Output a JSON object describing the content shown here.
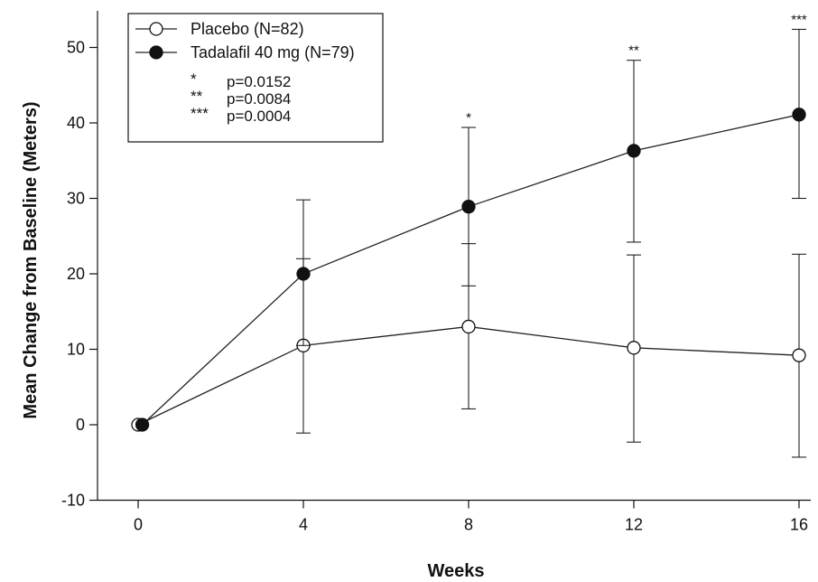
{
  "chart_data": {
    "type": "line",
    "xlabel": "Weeks",
    "ylabel": "Mean Change from Baseline (Meters)",
    "xlim": [
      -1,
      17
    ],
    "ylim": [
      -10,
      55
    ],
    "x_ticks": [
      0,
      4,
      8,
      12,
      16
    ],
    "y_ticks": [
      -10,
      0,
      10,
      20,
      30,
      40,
      50
    ],
    "grid": false,
    "legend_position": "top-left",
    "series": [
      {
        "name": "Placebo (N=82)",
        "marker": "open-circle",
        "x": [
          0,
          4,
          8,
          12,
          16
        ],
        "y": [
          0,
          10.5,
          13,
          10.2,
          9.2
        ],
        "error_high": [
          null,
          22,
          24,
          22.5,
          22.6
        ],
        "error_low": [
          null,
          -1.1,
          2.1,
          -2.3,
          -4.3
        ]
      },
      {
        "name": "Tadalafil 40 mg (N=79)",
        "marker": "filled-circle",
        "x": [
          0,
          4,
          8,
          12,
          16
        ],
        "y": [
          0,
          20,
          28.9,
          36.3,
          41.1
        ],
        "error_high": [
          null,
          29.8,
          39.4,
          48.3,
          52.4
        ],
        "error_low": [
          null,
          10.5,
          18.4,
          24.2,
          30
        ]
      }
    ],
    "significance": [
      {
        "x": 8,
        "stars": "*"
      },
      {
        "x": 12,
        "stars": "**"
      },
      {
        "x": 16,
        "stars": "***"
      }
    ],
    "legend_notes": [
      {
        "stars": "*",
        "text": "p=0.0152"
      },
      {
        "stars": "**",
        "text": "p=0.0084"
      },
      {
        "stars": "***",
        "text": "p=0.0004"
      }
    ]
  }
}
